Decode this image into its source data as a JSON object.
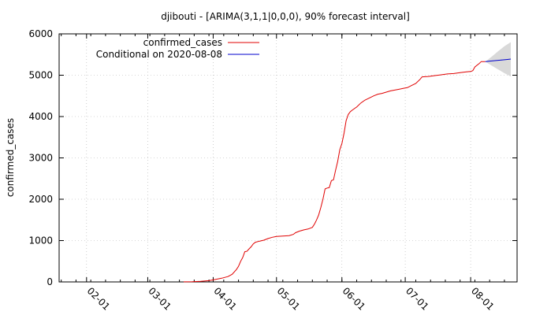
{
  "chart_data": {
    "type": "line",
    "title": "djibouti -  [ARIMA(3,1,1|0,0,0), 90% forecast interval]",
    "ylabel": "confirmed_cases",
    "xlabel": "",
    "x_range": [
      "2020-01-19",
      "2020-08-23"
    ],
    "ylim": [
      0,
      6000
    ],
    "y_ticks": [
      0,
      1000,
      2000,
      3000,
      4000,
      5000,
      6000
    ],
    "x_ticks": [
      {
        "date": "2020-02-01",
        "label": "02-01"
      },
      {
        "date": "2020-03-01",
        "label": "03-01"
      },
      {
        "date": "2020-04-01",
        "label": "04-01"
      },
      {
        "date": "2020-05-01",
        "label": "05-01"
      },
      {
        "date": "2020-06-01",
        "label": "06-01"
      },
      {
        "date": "2020-07-01",
        "label": "07-01"
      },
      {
        "date": "2020-08-01",
        "label": "08-01"
      }
    ],
    "grid": true,
    "legend_position": "top-left",
    "series": [
      {
        "name": "confirmed_cases",
        "color": "#e00000",
        "points": [
          [
            "2020-03-18",
            1
          ],
          [
            "2020-03-22",
            3
          ],
          [
            "2020-03-26",
            14
          ],
          [
            "2020-03-30",
            31
          ],
          [
            "2020-04-02",
            59
          ],
          [
            "2020-04-05",
            90
          ],
          [
            "2020-04-08",
            130
          ],
          [
            "2020-04-10",
            185
          ],
          [
            "2020-04-12",
            300
          ],
          [
            "2020-04-13",
            380
          ],
          [
            "2020-04-14",
            500
          ],
          [
            "2020-04-15",
            591
          ],
          [
            "2020-04-16",
            732
          ],
          [
            "2020-04-17",
            740
          ],
          [
            "2020-04-18",
            800
          ],
          [
            "2020-04-19",
            850
          ],
          [
            "2020-04-20",
            920
          ],
          [
            "2020-04-21",
            960
          ],
          [
            "2020-04-23",
            986
          ],
          [
            "2020-04-25",
            1010
          ],
          [
            "2020-04-27",
            1050
          ],
          [
            "2020-04-29",
            1080
          ],
          [
            "2020-05-01",
            1100
          ],
          [
            "2020-05-04",
            1110
          ],
          [
            "2020-05-07",
            1120
          ],
          [
            "2020-05-09",
            1150
          ],
          [
            "2020-05-10",
            1190
          ],
          [
            "2020-05-12",
            1230
          ],
          [
            "2020-05-14",
            1260
          ],
          [
            "2020-05-16",
            1280
          ],
          [
            "2020-05-18",
            1320
          ],
          [
            "2020-05-19",
            1400
          ],
          [
            "2020-05-20",
            1500
          ],
          [
            "2020-05-21",
            1620
          ],
          [
            "2020-05-22",
            1800
          ],
          [
            "2020-05-23",
            2000
          ],
          [
            "2020-05-24",
            2250
          ],
          [
            "2020-05-25",
            2270
          ],
          [
            "2020-05-26",
            2280
          ],
          [
            "2020-05-27",
            2450
          ],
          [
            "2020-05-28",
            2470
          ],
          [
            "2020-05-29",
            2700
          ],
          [
            "2020-05-30",
            2914
          ],
          [
            "2020-05-31",
            3200
          ],
          [
            "2020-06-01",
            3350
          ],
          [
            "2020-06-02",
            3600
          ],
          [
            "2020-06-03",
            3900
          ],
          [
            "2020-06-04",
            4050
          ],
          [
            "2020-06-05",
            4120
          ],
          [
            "2020-06-06",
            4160
          ],
          [
            "2020-06-08",
            4230
          ],
          [
            "2020-06-10",
            4330
          ],
          [
            "2020-06-12",
            4400
          ],
          [
            "2020-06-14",
            4450
          ],
          [
            "2020-06-16",
            4500
          ],
          [
            "2020-06-18",
            4540
          ],
          [
            "2020-06-20",
            4560
          ],
          [
            "2020-06-22",
            4590
          ],
          [
            "2020-06-24",
            4620
          ],
          [
            "2020-06-26",
            4640
          ],
          [
            "2020-06-28",
            4660
          ],
          [
            "2020-06-30",
            4680
          ],
          [
            "2020-07-02",
            4700
          ],
          [
            "2020-07-04",
            4750
          ],
          [
            "2020-07-06",
            4800
          ],
          [
            "2020-07-08",
            4900
          ],
          [
            "2020-07-09",
            4960
          ],
          [
            "2020-07-12",
            4970
          ],
          [
            "2020-07-15",
            4990
          ],
          [
            "2020-07-18",
            5010
          ],
          [
            "2020-07-21",
            5030
          ],
          [
            "2020-07-24",
            5040
          ],
          [
            "2020-07-27",
            5060
          ],
          [
            "2020-07-30",
            5080
          ],
          [
            "2020-08-01",
            5090
          ],
          [
            "2020-08-02",
            5110
          ],
          [
            "2020-08-03",
            5200
          ],
          [
            "2020-08-05",
            5280
          ],
          [
            "2020-08-06",
            5330
          ],
          [
            "2020-08-08",
            5330
          ]
        ]
      },
      {
        "name": "Conditional on 2020-08-08",
        "color": "#0000cc",
        "points": [
          [
            "2020-08-08",
            5330
          ],
          [
            "2020-08-10",
            5340
          ],
          [
            "2020-08-12",
            5350
          ],
          [
            "2020-08-14",
            5360
          ],
          [
            "2020-08-16",
            5370
          ],
          [
            "2020-08-18",
            5380
          ],
          [
            "2020-08-20",
            5390
          ]
        ],
        "interval": {
          "dates": [
            "2020-08-08",
            "2020-08-11",
            "2020-08-14",
            "2020-08-17",
            "2020-08-20"
          ],
          "lower": [
            5330,
            5230,
            5140,
            5050,
            4970
          ],
          "upper": [
            5330,
            5450,
            5580,
            5700,
            5800
          ]
        }
      }
    ]
  }
}
